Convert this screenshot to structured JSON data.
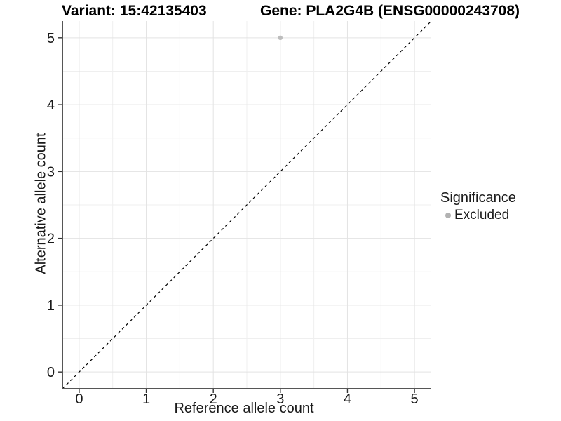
{
  "chart_data": {
    "type": "scatter",
    "titles": {
      "variant": "Variant: 15:42135403",
      "gene": "Gene: PLA2G4B (ENSG00000243708)"
    },
    "xlabel": "Reference allele count",
    "ylabel": "Alternative allele count",
    "xlim": [
      -0.25,
      5.25
    ],
    "ylim": [
      -0.25,
      5.25
    ],
    "xticks": [
      0,
      1,
      2,
      3,
      4,
      5
    ],
    "yticks": [
      0,
      1,
      2,
      3,
      4,
      5
    ],
    "minor_gridlines_x": [
      0.5,
      1.5,
      2.5,
      3.5,
      4.5
    ],
    "minor_gridlines_y": [
      0.5,
      1.5,
      2.5,
      3.5,
      4.5
    ],
    "grid": "on",
    "points": [
      {
        "x": 3,
        "y": 5,
        "significance": "Excluded"
      }
    ],
    "reference_line": {
      "kind": "identity",
      "slope": 1,
      "intercept": 0,
      "style": "dashed"
    },
    "legend": {
      "title": "Significance",
      "position": "right",
      "entries": [
        {
          "label": "Excluded",
          "color": "#b2b2b2"
        }
      ]
    },
    "colors": {
      "background": "#ffffff",
      "point": "#bdbdbd",
      "grid_major": "#e3e3e3",
      "grid_minor": "#efefef",
      "axis_line": "#565656",
      "tick_mark": "#333333",
      "tick_label": "#1a1a1a",
      "dashed_line": "#000000"
    }
  }
}
